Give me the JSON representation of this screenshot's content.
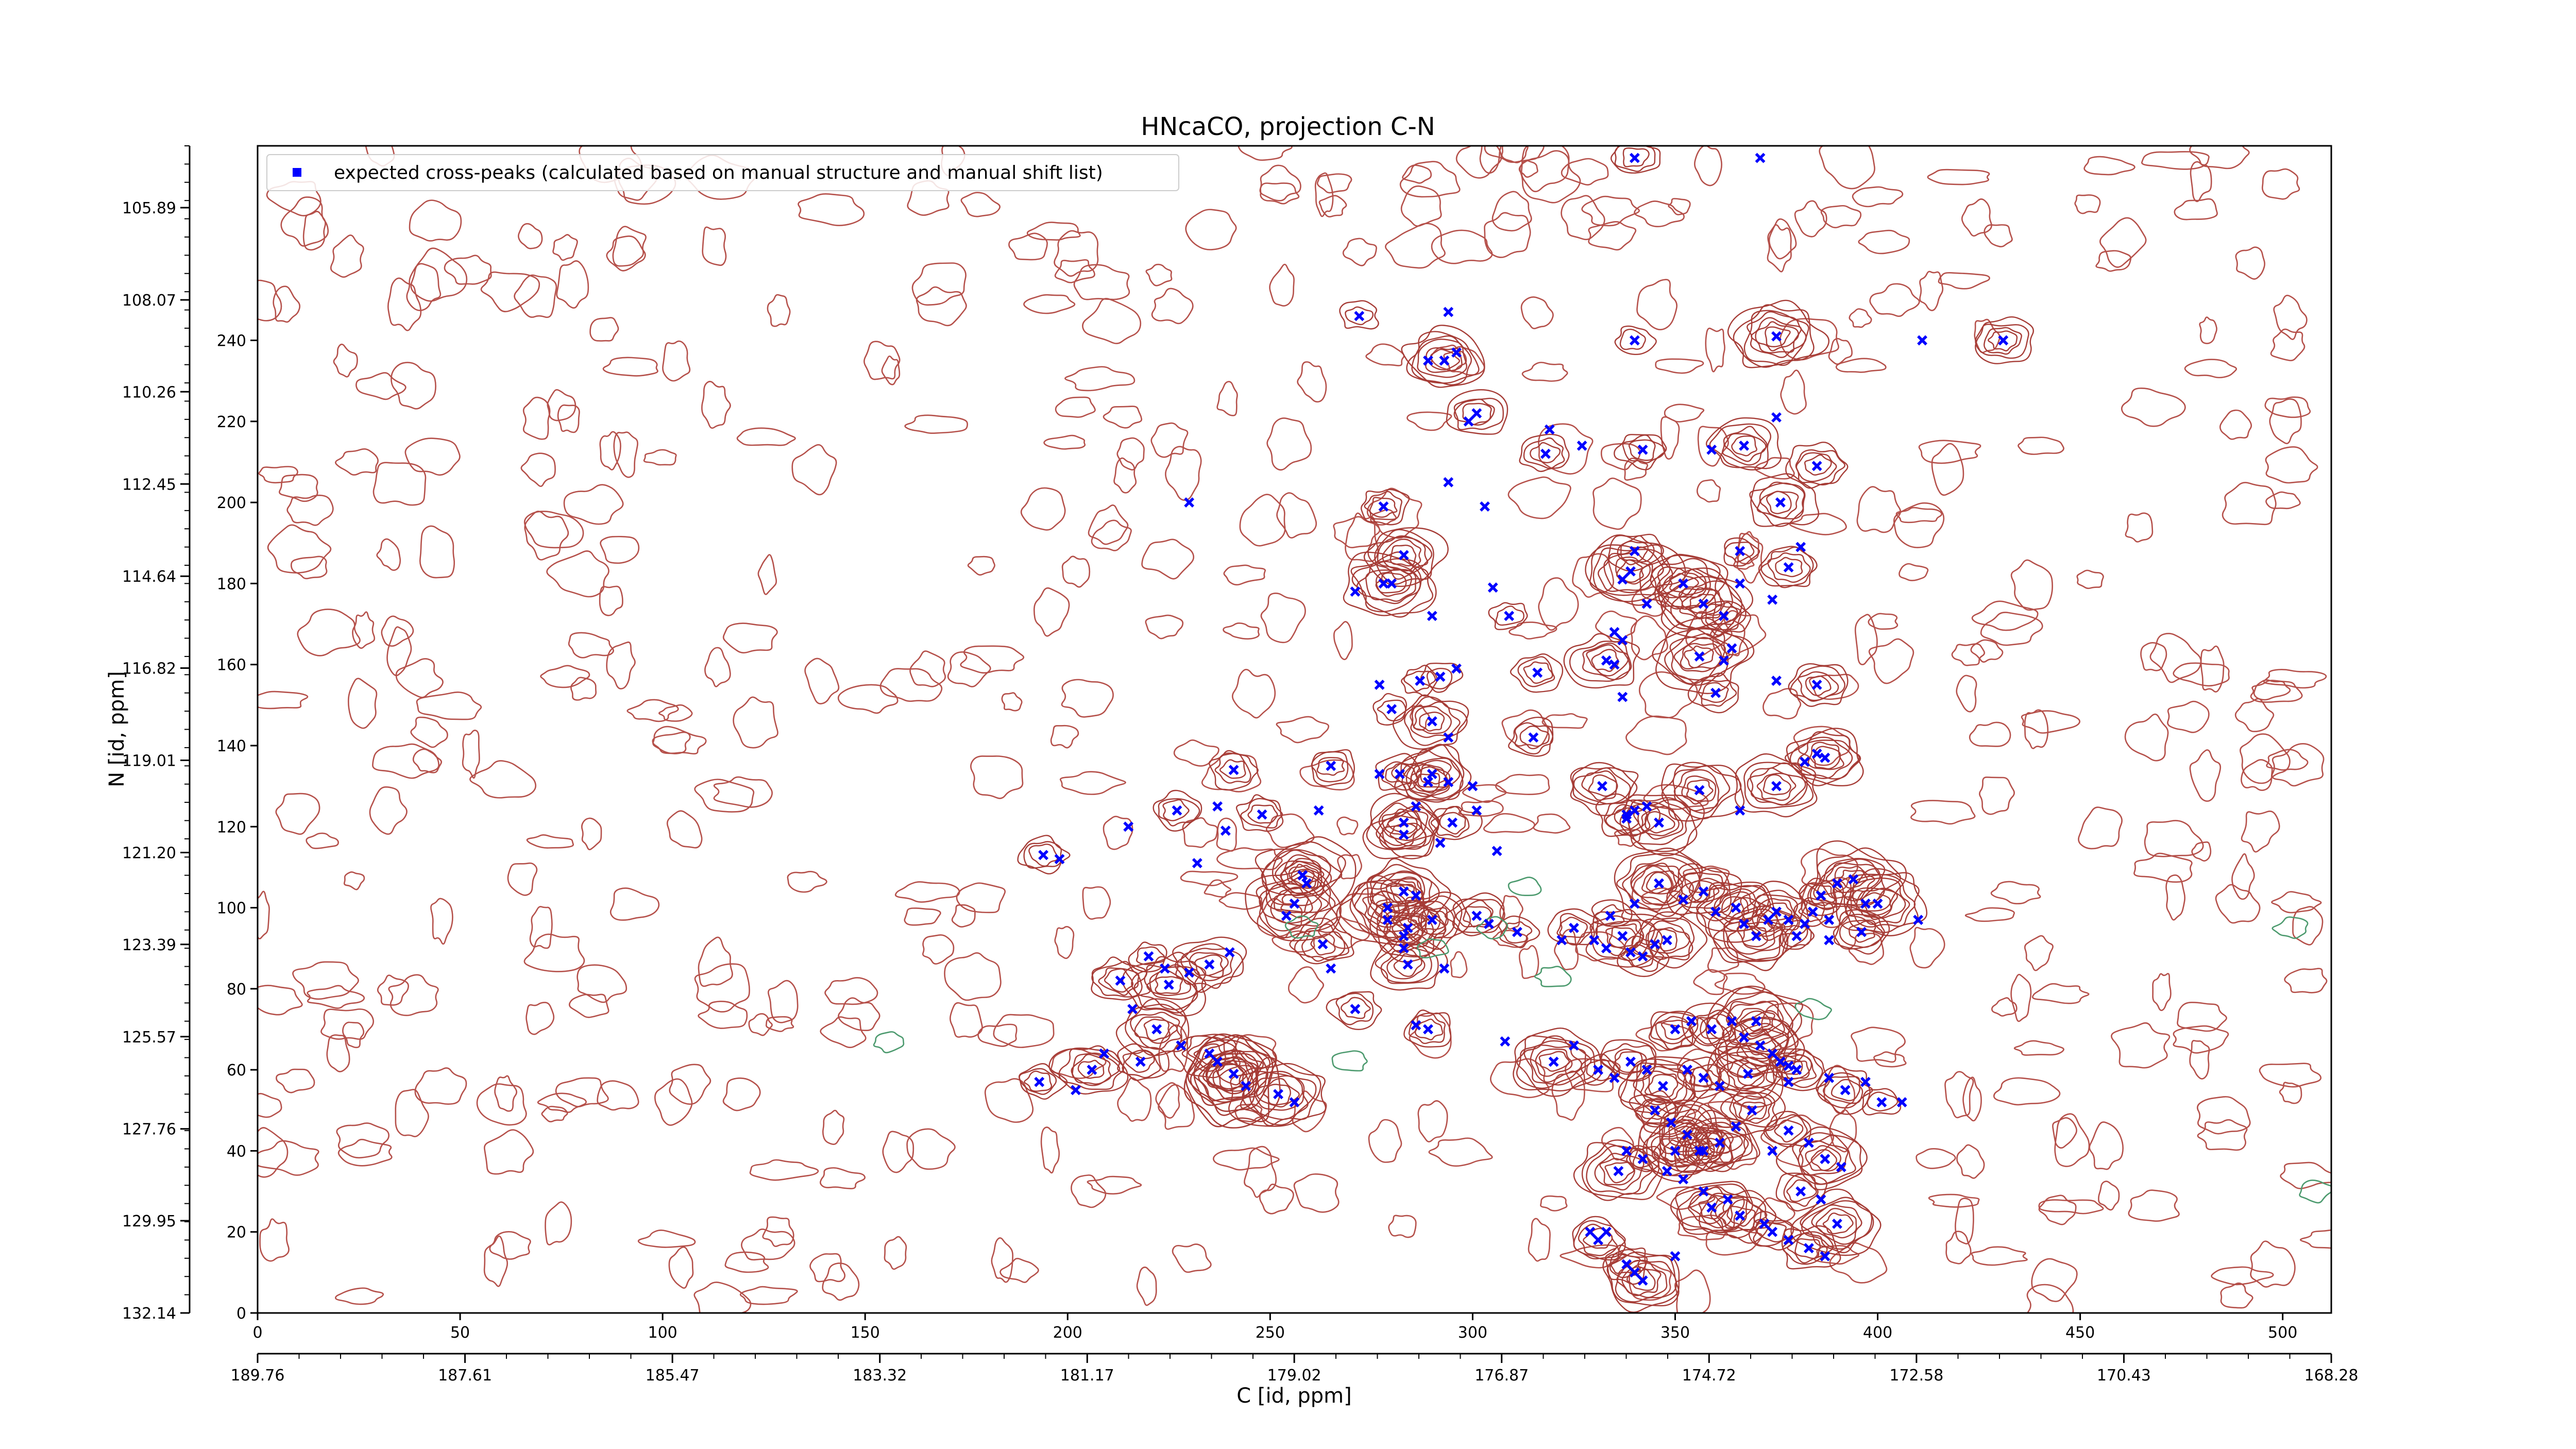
{
  "chart_data": {
    "type": "scatter",
    "title": "HNcaCO, projection C-N",
    "xlabel": "C [id, ppm]",
    "ylabel": "N [id, ppm]",
    "xlim": [
      0,
      512
    ],
    "ylim": [
      0,
      288
    ],
    "x_ticks": [
      0,
      50,
      100,
      150,
      200,
      250,
      300,
      350,
      400,
      450,
      500
    ],
    "y_ticks": [
      0,
      20,
      40,
      60,
      80,
      100,
      120,
      140,
      160,
      180,
      200,
      220,
      240
    ],
    "ppm_x_ticks": [
      {
        "at": 0,
        "label": "189.76"
      },
      {
        "at": 56.9,
        "label": "187.61"
      },
      {
        "at": 113.8,
        "label": "185.47"
      },
      {
        "at": 170.7,
        "label": "183.32"
      },
      {
        "at": 227.6,
        "label": "181.17"
      },
      {
        "at": 284.4,
        "label": "179.02"
      },
      {
        "at": 341.3,
        "label": "176.87"
      },
      {
        "at": 398.2,
        "label": "174.72"
      },
      {
        "at": 455.1,
        "label": "172.58"
      },
      {
        "at": 512,
        "label": "170.43"
      },
      {
        "at": 568.9,
        "label": "168.28"
      }
    ],
    "ppm_y_ticks": [
      {
        "at": 0,
        "label": "132.14"
      },
      {
        "at": 26.7,
        "label": "129.95"
      },
      {
        "at": 53.3,
        "label": "127.76"
      },
      {
        "at": 80,
        "label": "125.57"
      },
      {
        "at": 106.7,
        "label": "123.39"
      },
      {
        "at": 133.3,
        "label": "121.20"
      },
      {
        "at": 160,
        "label": "119.01"
      },
      {
        "at": 186.7,
        "label": "116.82"
      },
      {
        "at": 213.3,
        "label": "114.64"
      },
      {
        "at": 240,
        "label": "112.45"
      },
      {
        "at": 266.7,
        "label": "110.26"
      },
      {
        "at": 293.3,
        "label": "108.07"
      },
      {
        "at": 320,
        "label": "105.89"
      }
    ],
    "legend": {
      "position": "top-left"
    },
    "grid": false,
    "series": [
      {
        "name": "expected cross-peaks (calculated based on manual structure and manual shift list)",
        "color": "#0000ff",
        "marker": "x",
        "points": [
          [
            340,
            285
          ],
          [
            371,
            285
          ],
          [
            272,
            246
          ],
          [
            294,
            247
          ],
          [
            340,
            240
          ],
          [
            289,
            235
          ],
          [
            293,
            235
          ],
          [
            296,
            237
          ],
          [
            375,
            241
          ],
          [
            411,
            240
          ],
          [
            431,
            240
          ],
          [
            299,
            220
          ],
          [
            301,
            222
          ],
          [
            319,
            218
          ],
          [
            342,
            213
          ],
          [
            327,
            214
          ],
          [
            318,
            212
          ],
          [
            359,
            213
          ],
          [
            367,
            214
          ],
          [
            375,
            221
          ],
          [
            385,
            209
          ],
          [
            294,
            205
          ],
          [
            376,
            200
          ],
          [
            230,
            200
          ],
          [
            278,
            199
          ],
          [
            303,
            199
          ],
          [
            366,
            188
          ],
          [
            381,
            189
          ],
          [
            340,
            188
          ],
          [
            278,
            180
          ],
          [
            280,
            180
          ],
          [
            305,
            179
          ],
          [
            352,
            180
          ],
          [
            366,
            180
          ],
          [
            357,
            175
          ],
          [
            374,
            176
          ],
          [
            378,
            184
          ],
          [
            337,
            181
          ],
          [
            339,
            183
          ],
          [
            343,
            175
          ],
          [
            362,
            172
          ],
          [
            271,
            178
          ],
          [
            283,
            187
          ],
          [
            290,
            172
          ],
          [
            309,
            172
          ],
          [
            335,
            168
          ],
          [
            333,
            161
          ],
          [
            335,
            160
          ],
          [
            292,
            157
          ],
          [
            277,
            155
          ],
          [
            287,
            156
          ],
          [
            296,
            159
          ],
          [
            316,
            158
          ],
          [
            364,
            164
          ],
          [
            356,
            162
          ],
          [
            362,
            161
          ],
          [
            360,
            153
          ],
          [
            375,
            156
          ],
          [
            385,
            155
          ],
          [
            337,
            166
          ],
          [
            290,
            146
          ],
          [
            294,
            142
          ],
          [
            280,
            149
          ],
          [
            337,
            152
          ],
          [
            315,
            142
          ],
          [
            294,
            131
          ],
          [
            290,
            133
          ],
          [
            301,
            124
          ],
          [
            332,
            130
          ],
          [
            343,
            125
          ],
          [
            375,
            130
          ],
          [
            385,
            138
          ],
          [
            387,
            137
          ],
          [
            366,
            124
          ],
          [
            356,
            129
          ],
          [
            338,
            123
          ],
          [
            338,
            122
          ],
          [
            340,
            124
          ],
          [
            346,
            121
          ],
          [
            382,
            136
          ],
          [
            265,
            135
          ],
          [
            277,
            133
          ],
          [
            282,
            133
          ],
          [
            286,
            125
          ],
          [
            289,
            131
          ],
          [
            300,
            130
          ],
          [
            248,
            123
          ],
          [
            262,
            124
          ],
          [
            283,
            121
          ],
          [
            239,
            119
          ],
          [
            241,
            134
          ],
          [
            237,
            125
          ],
          [
            283,
            118
          ],
          [
            292,
            116
          ],
          [
            295,
            121
          ],
          [
            306,
            114
          ],
          [
            258,
            108
          ],
          [
            259,
            106
          ],
          [
            256,
            101
          ],
          [
            254,
            98
          ],
          [
            283,
            104
          ],
          [
            286,
            103
          ],
          [
            279,
            100
          ],
          [
            279,
            97
          ],
          [
            290,
            97
          ],
          [
            283,
            93
          ],
          [
            284,
            95
          ],
          [
            283,
            90
          ],
          [
            284,
            86
          ],
          [
            293,
            85
          ],
          [
            301,
            98
          ],
          [
            304,
            96
          ],
          [
            311,
            94
          ],
          [
            322,
            92
          ],
          [
            325,
            95
          ],
          [
            330,
            92
          ],
          [
            334,
            98
          ],
          [
            333,
            90
          ],
          [
            337,
            93
          ],
          [
            339,
            89
          ],
          [
            342,
            88
          ],
          [
            345,
            91
          ],
          [
            348,
            92
          ],
          [
            340,
            101
          ],
          [
            346,
            106
          ],
          [
            352,
            102
          ],
          [
            357,
            104
          ],
          [
            360,
            99
          ],
          [
            365,
            100
          ],
          [
            367,
            96
          ],
          [
            370,
            93
          ],
          [
            373,
            97
          ],
          [
            375,
            99
          ],
          [
            378,
            97
          ],
          [
            380,
            93
          ],
          [
            382,
            96
          ],
          [
            384,
            99
          ],
          [
            388,
            97
          ],
          [
            386,
            103
          ],
          [
            390,
            106
          ],
          [
            394,
            107
          ],
          [
            397,
            101
          ],
          [
            396,
            94
          ],
          [
            388,
            92
          ],
          [
            400,
            101
          ],
          [
            410,
            97
          ],
          [
            263,
            91
          ],
          [
            265,
            85
          ],
          [
            271,
            75
          ],
          [
            286,
            71
          ],
          [
            289,
            70
          ],
          [
            308,
            67
          ],
          [
            320,
            62
          ],
          [
            325,
            66
          ],
          [
            331,
            60
          ],
          [
            335,
            58
          ],
          [
            339,
            62
          ],
          [
            343,
            60
          ],
          [
            347,
            56
          ],
          [
            353,
            60
          ],
          [
            357,
            58
          ],
          [
            361,
            56
          ],
          [
            368,
            59
          ],
          [
            376,
            62
          ],
          [
            380,
            60
          ],
          [
            388,
            58
          ],
          [
            392,
            55
          ],
          [
            397,
            57
          ],
          [
            401,
            52
          ],
          [
            406,
            52
          ],
          [
            350,
            70
          ],
          [
            354,
            72
          ],
          [
            359,
            70
          ],
          [
            364,
            72
          ],
          [
            370,
            72
          ],
          [
            367,
            68
          ],
          [
            371,
            66
          ],
          [
            374,
            64
          ],
          [
            378,
            61
          ],
          [
            378,
            57
          ],
          [
            345,
            50
          ],
          [
            349,
            47
          ],
          [
            353,
            44
          ],
          [
            357,
            40
          ],
          [
            361,
            42
          ],
          [
            365,
            46
          ],
          [
            369,
            50
          ],
          [
            374,
            40
          ],
          [
            378,
            45
          ],
          [
            383,
            42
          ],
          [
            387,
            38
          ],
          [
            391,
            36
          ],
          [
            381,
            30
          ],
          [
            386,
            28
          ],
          [
            390,
            22
          ],
          [
            329,
            20
          ],
          [
            331,
            18
          ],
          [
            333,
            20
          ],
          [
            336,
            35
          ],
          [
            338,
            40
          ],
          [
            342,
            38
          ],
          [
            348,
            35
          ],
          [
            350,
            40
          ],
          [
            352,
            33
          ],
          [
            356,
            40
          ],
          [
            357,
            30
          ],
          [
            359,
            26
          ],
          [
            363,
            28
          ],
          [
            366,
            24
          ],
          [
            372,
            22
          ],
          [
            374,
            20
          ],
          [
            378,
            18
          ],
          [
            383,
            16
          ],
          [
            387,
            14
          ],
          [
            338,
            12
          ],
          [
            340,
            10
          ],
          [
            342,
            8
          ],
          [
            350,
            14
          ],
          [
            227,
            124
          ],
          [
            232,
            111
          ],
          [
            258,
            108
          ],
          [
            215,
            120
          ],
          [
            194,
            113
          ],
          [
            198,
            112
          ],
          [
            220,
            88
          ],
          [
            224,
            85
          ],
          [
            225,
            81
          ],
          [
            230,
            84
          ],
          [
            235,
            86
          ],
          [
            240,
            89
          ],
          [
            213,
            82
          ],
          [
            216,
            75
          ],
          [
            222,
            70
          ],
          [
            228,
            66
          ],
          [
            235,
            64
          ],
          [
            237,
            62
          ],
          [
            241,
            59
          ],
          [
            244,
            56
          ],
          [
            252,
            54
          ],
          [
            256,
            52
          ],
          [
            218,
            62
          ],
          [
            202,
            55
          ],
          [
            206,
            60
          ],
          [
            209,
            64
          ],
          [
            193,
            57
          ]
        ]
      }
    ]
  }
}
